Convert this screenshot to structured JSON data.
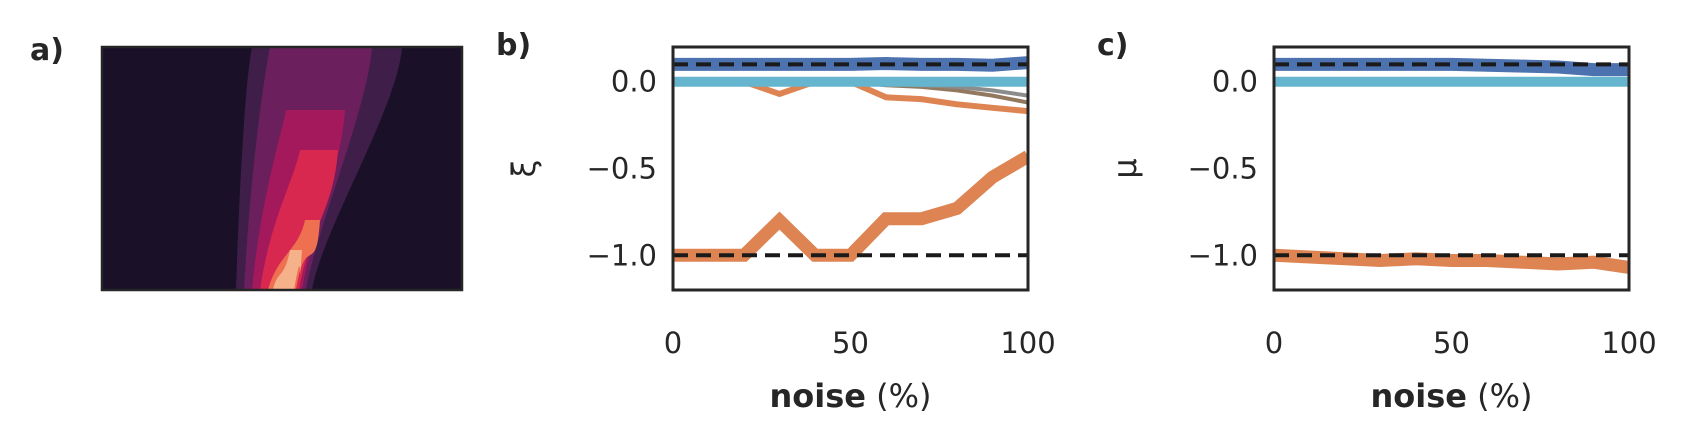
{
  "panels": {
    "a": {
      "label": "a)"
    },
    "b": {
      "label": "b)"
    },
    "c": {
      "label": "c)"
    }
  },
  "colors": {
    "background_dark": "#1a1028",
    "blue": "#4c72b0",
    "light_blue": "#64b5cd",
    "orange": "#dd8452",
    "brown": "#937860",
    "gray": "#8c8c8c",
    "reference": "#1a1a1a",
    "frame": "#262626"
  },
  "chart_data": [
    {
      "id": "a",
      "type": "heatmap",
      "title": "",
      "xlabel": "",
      "ylabel": "",
      "grid": false,
      "colormap": [
        "#1a1028",
        "#3f1f4a",
        "#6b1f5c",
        "#a3195b",
        "#d8284f",
        "#ee7051",
        "#f5b18a"
      ]
    },
    {
      "id": "b",
      "type": "line",
      "xlabel_bold": "noise",
      "xlabel_rest": " (%)",
      "ylabel": "ξ",
      "xlim": [
        0,
        100
      ],
      "ylim": [
        -1.2,
        0.2
      ],
      "xticks": [
        0,
        50,
        100
      ],
      "xtick_labels": [
        "0",
        "50",
        "100"
      ],
      "yticks": [
        0.0,
        -0.5,
        -1.0
      ],
      "ytick_labels": [
        "0.0",
        "−0.5",
        "−1.0"
      ],
      "grid": false,
      "reference_lines": [
        0.1,
        -1.0
      ],
      "series": [
        {
          "color": "#937860",
          "width": 4,
          "x": [
            0,
            10,
            20,
            30,
            40,
            50,
            60,
            70,
            80,
            90,
            100
          ],
          "y": [
            0,
            0,
            0,
            0,
            0,
            0,
            -0.02,
            -0.03,
            -0.05,
            -0.08,
            -0.12
          ]
        },
        {
          "color": "#8c8c8c",
          "width": 4,
          "x": [
            0,
            10,
            20,
            30,
            40,
            50,
            60,
            70,
            80,
            90,
            100
          ],
          "y": [
            0,
            0,
            0,
            0,
            0,
            0,
            -0.01,
            -0.02,
            -0.03,
            -0.05,
            -0.08
          ]
        },
        {
          "color": "#dd8452",
          "width": 6,
          "x": [
            0,
            10,
            20,
            30,
            40,
            50,
            60,
            70,
            80,
            90,
            100
          ],
          "y": [
            0,
            0,
            0,
            -0.07,
            0,
            0,
            -0.09,
            -0.1,
            -0.13,
            -0.15,
            -0.17
          ]
        },
        {
          "color": "#dd8452",
          "width": 13,
          "x": [
            0,
            10,
            20,
            30,
            40,
            50,
            60,
            70,
            80,
            90,
            100
          ],
          "y": [
            -1.0,
            -1.0,
            -1.0,
            -0.8,
            -1.0,
            -1.0,
            -0.79,
            -0.79,
            -0.73,
            -0.55,
            -0.43
          ]
        },
        {
          "color": "#64b5cd",
          "width": 10,
          "x": [
            0,
            100
          ],
          "y": [
            0,
            0
          ]
        },
        {
          "color": "#4c72b0",
          "width": 13,
          "x": [
            0,
            10,
            20,
            30,
            40,
            50,
            60,
            70,
            80,
            90,
            100
          ],
          "y": [
            0.1,
            0.1,
            0.1,
            0.1,
            0.1,
            0.1,
            0.105,
            0.1,
            0.1,
            0.095,
            0.11
          ]
        }
      ]
    },
    {
      "id": "c",
      "type": "line",
      "xlabel_bold": "noise",
      "xlabel_rest": " (%)",
      "ylabel": "μ",
      "xlim": [
        0,
        100
      ],
      "ylim": [
        -1.2,
        0.2
      ],
      "xticks": [
        0,
        50,
        100
      ],
      "xtick_labels": [
        "0",
        "50",
        "100"
      ],
      "yticks": [
        0.0,
        -0.5,
        -1.0
      ],
      "ytick_labels": [
        "0.0",
        "−0.5",
        "−1.0"
      ],
      "grid": false,
      "reference_lines": [
        0.1,
        -1.0
      ],
      "series": [
        {
          "color": "#dd8452",
          "width": 13,
          "x": [
            0,
            10,
            20,
            30,
            40,
            50,
            60,
            70,
            80,
            90,
            100
          ],
          "y": [
            -1.0,
            -1.01,
            -1.02,
            -1.03,
            -1.02,
            -1.03,
            -1.03,
            -1.04,
            -1.05,
            -1.04,
            -1.07
          ]
        },
        {
          "color": "#64b5cd",
          "width": 10,
          "x": [
            0,
            100
          ],
          "y": [
            0,
            0
          ]
        },
        {
          "color": "#4c72b0",
          "width": 13,
          "x": [
            0,
            10,
            20,
            30,
            40,
            50,
            60,
            70,
            80,
            90,
            100
          ],
          "y": [
            0.1,
            0.1,
            0.1,
            0.1,
            0.1,
            0.1,
            0.095,
            0.09,
            0.085,
            0.07,
            0.07
          ]
        }
      ]
    }
  ]
}
